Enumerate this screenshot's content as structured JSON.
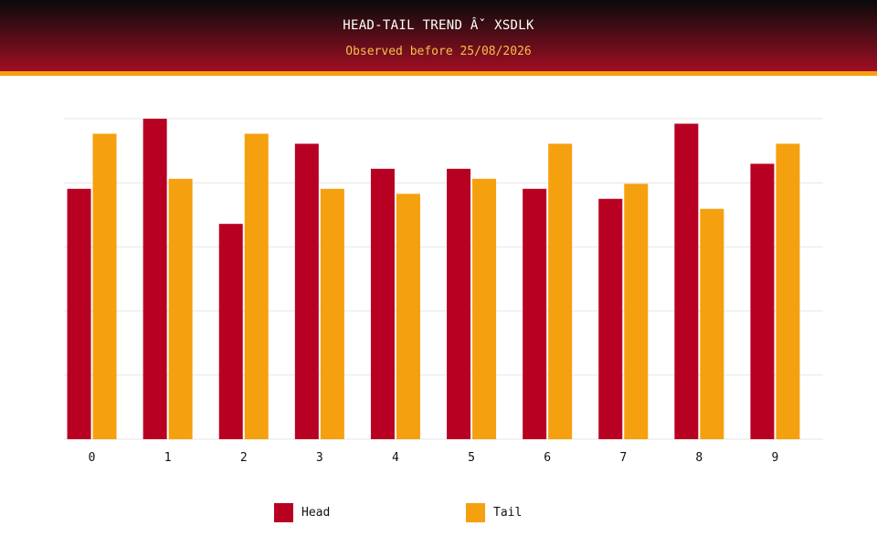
{
  "header": {
    "title": "HEAD-TAIL TREND Âˇ XSDLK",
    "subtitle": "Observed before 25/08/2026"
  },
  "colors": {
    "head": "#b80022",
    "tail": "#f5a00f",
    "grid": "#e6e6e6"
  },
  "chart_data": {
    "type": "bar",
    "categories": [
      "0",
      "1",
      "2",
      "3",
      "4",
      "5",
      "6",
      "7",
      "8",
      "9"
    ],
    "ylim": [
      0,
      32
    ],
    "grid": true,
    "legend_position": "bottom-center",
    "series": [
      {
        "name": "Head",
        "values": [
          25,
          32,
          21.5,
          29.5,
          27,
          27,
          25,
          24,
          31.5,
          27.5
        ]
      },
      {
        "name": "Tail",
        "values": [
          30.5,
          26,
          30.5,
          25,
          24.5,
          26,
          29.5,
          25.5,
          23,
          29.5
        ]
      }
    ]
  }
}
